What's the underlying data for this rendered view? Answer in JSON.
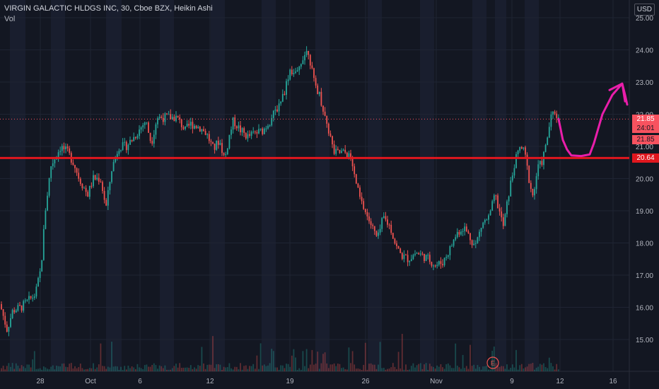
{
  "chart_data": {
    "type": "candlestick",
    "title": "VIRGIN GALACTIC HLDGS INC, 30, Cboe BZX, Heikin Ashi",
    "volume_label": "Vol",
    "currency": "USD",
    "ylim": [
      14.0,
      25.2
    ],
    "y_ticks": [
      "15.00",
      "16.00",
      "17.00",
      "18.00",
      "19.00",
      "20.00",
      "21.00",
      "22.00",
      "23.00",
      "24.00",
      "25.00"
    ],
    "x_ticks": [
      "28",
      "Oct",
      "6",
      "12",
      "19",
      "26",
      "Nov",
      "9",
      "12",
      "16"
    ],
    "price_path": [
      [
        0,
        16.1
      ],
      [
        10,
        15.3
      ],
      [
        18,
        15.9
      ],
      [
        30,
        16.0
      ],
      [
        50,
        16.4
      ],
      [
        58,
        17.2
      ],
      [
        64,
        19.0
      ],
      [
        72,
        20.4
      ],
      [
        86,
        21.0
      ],
      [
        96,
        20.8
      ],
      [
        104,
        20.5
      ],
      [
        112,
        20.0
      ],
      [
        124,
        19.5
      ],
      [
        132,
        20.0
      ],
      [
        142,
        20.0
      ],
      [
        150,
        19.1
      ],
      [
        158,
        20.3
      ],
      [
        168,
        21.0
      ],
      [
        178,
        21.0
      ],
      [
        190,
        21.3
      ],
      [
        206,
        21.8
      ],
      [
        214,
        21.1
      ],
      [
        222,
        21.9
      ],
      [
        236,
        21.9
      ],
      [
        250,
        21.9
      ],
      [
        262,
        21.5
      ],
      [
        270,
        21.7
      ],
      [
        282,
        21.6
      ],
      [
        292,
        21.4
      ],
      [
        302,
        20.9
      ],
      [
        310,
        21.2
      ],
      [
        318,
        20.6
      ],
      [
        324,
        21.3
      ],
      [
        330,
        21.8
      ],
      [
        340,
        21.5
      ],
      [
        350,
        21.3
      ],
      [
        360,
        21.4
      ],
      [
        372,
        21.5
      ],
      [
        382,
        21.8
      ],
      [
        392,
        22.2
      ],
      [
        402,
        22.7
      ],
      [
        410,
        23.4
      ],
      [
        420,
        23.2
      ],
      [
        428,
        23.8
      ],
      [
        436,
        24.0
      ],
      [
        444,
        23.0
      ],
      [
        452,
        22.6
      ],
      [
        460,
        21.9
      ],
      [
        466,
        21.4
      ],
      [
        472,
        20.8
      ],
      [
        482,
        20.8
      ],
      [
        490,
        20.8
      ],
      [
        496,
        20.6
      ],
      [
        502,
        20.0
      ],
      [
        510,
        19.3
      ],
      [
        518,
        18.9
      ],
      [
        526,
        18.5
      ],
      [
        534,
        18.1
      ],
      [
        542,
        18.8
      ],
      [
        552,
        18.5
      ],
      [
        560,
        17.9
      ],
      [
        568,
        17.6
      ],
      [
        578,
        17.5
      ],
      [
        588,
        17.7
      ],
      [
        598,
        17.6
      ],
      [
        606,
        17.5
      ],
      [
        616,
        17.3
      ],
      [
        626,
        17.4
      ],
      [
        636,
        17.8
      ],
      [
        646,
        18.3
      ],
      [
        656,
        18.5
      ],
      [
        664,
        18.2
      ],
      [
        672,
        17.9
      ],
      [
        682,
        18.6
      ],
      [
        692,
        18.8
      ],
      [
        700,
        19.5
      ],
      [
        706,
        19.0
      ],
      [
        712,
        18.5
      ],
      [
        720,
        19.6
      ],
      [
        728,
        20.5
      ],
      [
        736,
        21.0
      ],
      [
        742,
        20.8
      ],
      [
        748,
        20.0
      ],
      [
        754,
        19.4
      ],
      [
        760,
        20.3
      ],
      [
        766,
        20.5
      ],
      [
        772,
        21.0
      ],
      [
        778,
        21.8
      ],
      [
        784,
        22.1
      ],
      [
        790,
        21.85
      ]
    ],
    "annotation_color": "#e91eaa",
    "support_line_color": "#e0171e",
    "support_level": "20.64",
    "price_tags": [
      {
        "label": "21.85",
        "y": 21.85,
        "bg": "#f7525f",
        "fg": "#ffffff"
      },
      {
        "label": "24:01",
        "y": 21.55,
        "bg": "#f7525f",
        "fg": "#131722"
      },
      {
        "label": "21.85",
        "y": 21.2,
        "bg": "#f7525f",
        "fg": "#131722"
      },
      {
        "label": "20.64",
        "y": 20.64,
        "bg": "#e0171e",
        "fg": "#ffffff"
      }
    ],
    "earnings_marker": "E",
    "up_color": "#26a69a",
    "down_color": "#ef5350"
  }
}
